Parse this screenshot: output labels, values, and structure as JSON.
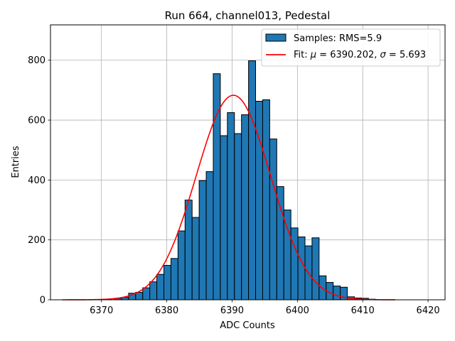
{
  "chart_data": {
    "type": "bar",
    "title": "Run 664, channel013, Pedestal",
    "xlabel": "ADC Counts",
    "ylabel": "Entries",
    "xlim": [
      6362.2,
      6422.6
    ],
    "ylim": [
      0,
      918
    ],
    "xticks": [
      6370,
      6380,
      6390,
      6400,
      6410,
      6420
    ],
    "yticks": [
      0,
      200,
      400,
      600,
      800
    ],
    "grid": true,
    "legend_position": "top-right",
    "colors": {
      "bars": "#1f77b4",
      "bar_edge": "#000000",
      "fit": "#ff0000"
    },
    "histogram": {
      "name": "Samples: RMS=5.9",
      "bins": [
        {
          "x0": 6372.0,
          "x1": 6373.08,
          "count": 5
        },
        {
          "x0": 6373.08,
          "x1": 6374.16,
          "count": 8
        },
        {
          "x0": 6374.16,
          "x1": 6375.24,
          "count": 22
        },
        {
          "x0": 6375.24,
          "x1": 6376.32,
          "count": 25
        },
        {
          "x0": 6376.32,
          "x1": 6377.4,
          "count": 40
        },
        {
          "x0": 6377.4,
          "x1": 6378.48,
          "count": 60
        },
        {
          "x0": 6378.48,
          "x1": 6379.56,
          "count": 85
        },
        {
          "x0": 6379.56,
          "x1": 6380.64,
          "count": 115
        },
        {
          "x0": 6380.64,
          "x1": 6381.72,
          "count": 138
        },
        {
          "x0": 6381.72,
          "x1": 6382.8,
          "count": 230
        },
        {
          "x0": 6382.8,
          "x1": 6383.88,
          "count": 333
        },
        {
          "x0": 6383.88,
          "x1": 6384.96,
          "count": 275
        },
        {
          "x0": 6384.96,
          "x1": 6386.04,
          "count": 398
        },
        {
          "x0": 6386.04,
          "x1": 6387.12,
          "count": 428
        },
        {
          "x0": 6387.12,
          "x1": 6388.2,
          "count": 755
        },
        {
          "x0": 6388.2,
          "x1": 6389.28,
          "count": 548
        },
        {
          "x0": 6389.28,
          "x1": 6390.36,
          "count": 625
        },
        {
          "x0": 6390.36,
          "x1": 6391.44,
          "count": 555
        },
        {
          "x0": 6391.44,
          "x1": 6392.52,
          "count": 618
        },
        {
          "x0": 6392.52,
          "x1": 6393.6,
          "count": 798
        },
        {
          "x0": 6393.6,
          "x1": 6394.68,
          "count": 663
        },
        {
          "x0": 6394.68,
          "x1": 6395.76,
          "count": 668
        },
        {
          "x0": 6395.76,
          "x1": 6396.84,
          "count": 537
        },
        {
          "x0": 6396.84,
          "x1": 6397.92,
          "count": 378
        },
        {
          "x0": 6397.92,
          "x1": 6399.0,
          "count": 300
        },
        {
          "x0": 6399.0,
          "x1": 6400.08,
          "count": 240
        },
        {
          "x0": 6400.08,
          "x1": 6401.16,
          "count": 210
        },
        {
          "x0": 6401.16,
          "x1": 6402.24,
          "count": 180
        },
        {
          "x0": 6402.24,
          "x1": 6403.32,
          "count": 207
        },
        {
          "x0": 6403.32,
          "x1": 6404.4,
          "count": 80
        },
        {
          "x0": 6404.4,
          "x1": 6405.48,
          "count": 58
        },
        {
          "x0": 6405.48,
          "x1": 6406.56,
          "count": 46
        },
        {
          "x0": 6406.56,
          "x1": 6407.64,
          "count": 42
        },
        {
          "x0": 6407.64,
          "x1": 6408.72,
          "count": 10
        },
        {
          "x0": 6408.72,
          "x1": 6409.8,
          "count": 6
        },
        {
          "x0": 6409.8,
          "x1": 6410.88,
          "count": 5
        },
        {
          "x0": 6410.88,
          "x1": 6411.96,
          "count": 2
        }
      ]
    },
    "fit": {
      "legend_prefix": "Fit: ",
      "mu_symbol": "μ",
      "sigma_symbol": "σ",
      "mu": 6390.202,
      "sigma": 5.693,
      "mu_text": "6390.202",
      "sigma_text": "5.693",
      "amplitude": 683,
      "x_range": [
        6364,
        6415
      ]
    }
  }
}
